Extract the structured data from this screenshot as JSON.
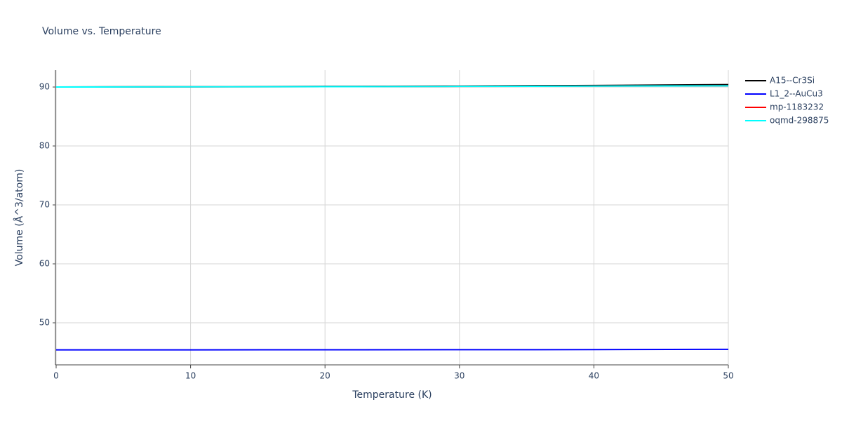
{
  "chart_data": {
    "type": "line",
    "title": "Volume vs. Temperature",
    "x_label": "Temperature (K)",
    "y_label": "Volume (Å^3/atom)",
    "x": [
      0,
      10,
      20,
      30,
      40,
      50
    ],
    "series": [
      {
        "name": "A15--Cr3Si",
        "color": "#000000",
        "values": [
          90.0,
          90.05,
          90.1,
          90.15,
          90.25,
          90.4
        ]
      },
      {
        "name": "L1_2--AuCu3",
        "color": "#0000ff",
        "values": [
          45.4,
          45.41,
          45.42,
          45.43,
          45.45,
          45.5
        ]
      },
      {
        "name": "mp-1183232",
        "color": "#ff0000",
        "values": [
          90.0,
          90.03,
          90.06,
          90.1,
          90.15,
          90.2
        ]
      },
      {
        "name": "oqmd-298875",
        "color": "#00ffff",
        "values": [
          90.0,
          90.03,
          90.06,
          90.1,
          90.15,
          90.2
        ]
      }
    ],
    "xlim": [
      0,
      50
    ],
    "xticks": [
      0,
      10,
      20,
      30,
      40,
      50
    ],
    "ylim": [
      42.86,
      92.86
    ],
    "yticks": [
      50,
      60,
      70,
      80,
      90
    ],
    "grid": true,
    "legend": "right"
  }
}
